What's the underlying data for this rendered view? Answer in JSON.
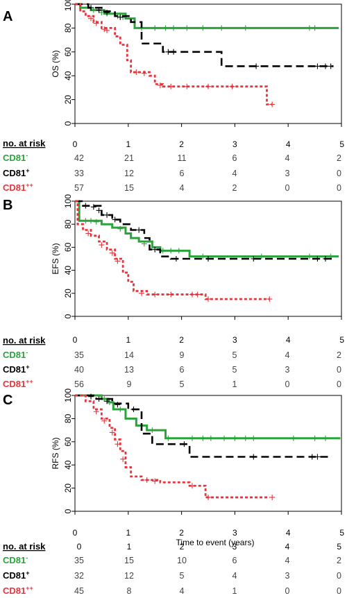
{
  "chart_data": [
    {
      "type": "line",
      "panel": "A",
      "ylabel": "OS (%)",
      "xlabel": "",
      "xlim": [
        0,
        5
      ],
      "ylim": [
        0,
        100
      ],
      "xticks": [
        "0",
        "1",
        "2",
        "3",
        "4",
        "5"
      ],
      "yticks": [
        "0",
        "20",
        "40",
        "60",
        "80",
        "100"
      ],
      "risk_table": {
        "header": "no. at risk",
        "times": [
          "0",
          "1",
          "2",
          "3",
          "4",
          "5"
        ],
        "rows": [
          {
            "label": "CD81",
            "sup": "-",
            "color": "#2aa33a",
            "values": [
              "42",
              "21",
              "11",
              "6",
              "4",
              "2"
            ]
          },
          {
            "label": "CD81",
            "sup": "+",
            "color": "#000000",
            "values": [
              "33",
              "12",
              "6",
              "4",
              "3",
              "0"
            ]
          },
          {
            "label": "CD81",
            "sup": "++",
            "color": "#e8333a",
            "values": [
              "57",
              "15",
              "4",
              "2",
              "0",
              "0"
            ]
          }
        ]
      },
      "series": [
        {
          "style": "solid",
          "color": "#2aa33a",
          "steps": [
            [
              0,
              100
            ],
            [
              0.1,
              97
            ],
            [
              0.3,
              95
            ],
            [
              0.55,
              92
            ],
            [
              0.95,
              88
            ],
            [
              1.12,
              80
            ],
            [
              4.95,
              80
            ]
          ],
          "censors": [
            [
              0.35,
              95
            ],
            [
              0.5,
              93
            ],
            [
              0.6,
              92
            ],
            [
              0.8,
              90
            ],
            [
              0.9,
              89
            ],
            [
              1.25,
              80
            ],
            [
              1.5,
              80
            ],
            [
              1.7,
              80
            ],
            [
              1.85,
              80
            ],
            [
              2.1,
              80
            ],
            [
              2.4,
              80
            ],
            [
              2.75,
              80
            ],
            [
              3.2,
              80
            ],
            [
              4.4,
              80
            ],
            [
              4.5,
              80
            ]
          ]
        },
        {
          "style": "dashed",
          "color": "#000000",
          "steps": [
            [
              0,
              100
            ],
            [
              0.25,
              97
            ],
            [
              0.5,
              94
            ],
            [
              0.75,
              90
            ],
            [
              1.05,
              85
            ],
            [
              1.25,
              67
            ],
            [
              1.65,
              60
            ],
            [
              2.75,
              48
            ],
            [
              4.85,
              48
            ]
          ],
          "censors": [
            [
              0.3,
              97
            ],
            [
              0.45,
              95
            ],
            [
              0.6,
              93
            ],
            [
              0.85,
              89
            ],
            [
              1.75,
              60
            ],
            [
              1.85,
              60
            ],
            [
              3.4,
              48
            ],
            [
              4.55,
              48
            ],
            [
              4.7,
              48
            ],
            [
              4.8,
              48
            ]
          ]
        },
        {
          "style": "dotted",
          "color": "#e8333a",
          "steps": [
            [
              0,
              100
            ],
            [
              0.1,
              94
            ],
            [
              0.2,
              90
            ],
            [
              0.35,
              85
            ],
            [
              0.5,
              80
            ],
            [
              0.75,
              73
            ],
            [
              0.85,
              66
            ],
            [
              0.98,
              53
            ],
            [
              1.05,
              43
            ],
            [
              1.4,
              40
            ],
            [
              1.5,
              33
            ],
            [
              1.65,
              31
            ],
            [
              3.5,
              31
            ],
            [
              3.6,
              16
            ],
            [
              3.7,
              16
            ]
          ],
          "censors": [
            [
              0.3,
              88
            ],
            [
              0.4,
              84
            ],
            [
              0.55,
              79
            ],
            [
              0.6,
              78
            ],
            [
              1.15,
              43
            ],
            [
              1.3,
              42
            ],
            [
              1.6,
              32
            ],
            [
              1.8,
              31
            ],
            [
              2.1,
              31
            ],
            [
              2.5,
              31
            ],
            [
              2.95,
              31
            ],
            [
              3.7,
              16
            ]
          ]
        }
      ]
    },
    {
      "type": "line",
      "panel": "B",
      "ylabel": "EFS (%)",
      "xlabel": "",
      "xlim": [
        0,
        5
      ],
      "ylim": [
        0,
        100
      ],
      "xticks": [
        "0",
        "1",
        "2",
        "3",
        "4",
        "5"
      ],
      "yticks": [
        "0",
        "20",
        "40",
        "60",
        "80",
        "100"
      ],
      "risk_table": {
        "header": "no. at risk",
        "times": [
          "0",
          "1",
          "2",
          "3",
          "4",
          "5"
        ],
        "rows": [
          {
            "label": "CD81",
            "sup": "-",
            "color": "#2aa33a",
            "values": [
              "35",
              "14",
              "9",
              "5",
              "4",
              "2"
            ]
          },
          {
            "label": "CD81",
            "sup": "+",
            "color": "#000000",
            "values": [
              "40",
              "13",
              "6",
              "5",
              "3",
              "0"
            ]
          },
          {
            "label": "CD81",
            "sup": "++",
            "color": "#e8333a",
            "values": [
              "56",
              "9",
              "5",
              "1",
              "0",
              "0"
            ]
          }
        ]
      },
      "series": [
        {
          "style": "solid",
          "color": "#2aa33a",
          "steps": [
            [
              0,
              100
            ],
            [
              0.08,
              83
            ],
            [
              0.5,
              80
            ],
            [
              0.7,
              77
            ],
            [
              0.95,
              72
            ],
            [
              1.05,
              68
            ],
            [
              1.2,
              65
            ],
            [
              1.45,
              60
            ],
            [
              1.6,
              57
            ],
            [
              2.15,
              52
            ],
            [
              4.95,
              52
            ]
          ],
          "censors": [
            [
              0.2,
              83
            ],
            [
              0.3,
              83
            ],
            [
              0.4,
              82
            ],
            [
              0.85,
              76
            ],
            [
              1.3,
              63
            ],
            [
              1.65,
              57
            ],
            [
              1.8,
              57
            ],
            [
              1.95,
              57
            ],
            [
              2.4,
              52
            ],
            [
              3.5,
              52
            ],
            [
              4.4,
              52
            ],
            [
              4.8,
              52
            ]
          ]
        },
        {
          "style": "dashed",
          "color": "#000000",
          "steps": [
            [
              0,
              100
            ],
            [
              0.15,
              96
            ],
            [
              0.5,
              88
            ],
            [
              0.7,
              84
            ],
            [
              0.85,
              80
            ],
            [
              1.05,
              75
            ],
            [
              1.3,
              68
            ],
            [
              1.4,
              58
            ],
            [
              1.6,
              52
            ],
            [
              1.8,
              50
            ],
            [
              4.85,
              50
            ]
          ],
          "censors": [
            [
              0.2,
              96
            ],
            [
              0.35,
              95
            ],
            [
              0.45,
              92
            ],
            [
              0.6,
              88
            ],
            [
              0.75,
              84
            ],
            [
              1.2,
              75
            ],
            [
              1.5,
              58
            ],
            [
              1.9,
              50
            ],
            [
              2.5,
              50
            ],
            [
              3.35,
              50
            ],
            [
              4.55,
              50
            ],
            [
              4.7,
              50
            ]
          ]
        },
        {
          "style": "dotted",
          "color": "#e8333a",
          "steps": [
            [
              0,
              100
            ],
            [
              0.05,
              80
            ],
            [
              0.15,
              75
            ],
            [
              0.3,
              70
            ],
            [
              0.45,
              65
            ],
            [
              0.6,
              58
            ],
            [
              0.75,
              50
            ],
            [
              0.9,
              38
            ],
            [
              1.0,
              30
            ],
            [
              1.1,
              22
            ],
            [
              1.35,
              19
            ],
            [
              2.45,
              15
            ],
            [
              3.65,
              15
            ]
          ],
          "censors": [
            [
              0.25,
              72
            ],
            [
              0.5,
              62
            ],
            [
              0.7,
              55
            ],
            [
              0.8,
              48
            ],
            [
              1.25,
              20
            ],
            [
              1.5,
              19
            ],
            [
              1.8,
              19
            ],
            [
              2.2,
              19
            ],
            [
              2.3,
              19
            ],
            [
              2.5,
              15
            ],
            [
              3.65,
              15
            ]
          ]
        }
      ]
    },
    {
      "type": "line",
      "panel": "C",
      "ylabel": "RFS (%)",
      "xlabel": "Time to event (years)",
      "xlim": [
        0,
        5
      ],
      "ylim": [
        0,
        100
      ],
      "xticks": [
        "0",
        "1",
        "2",
        "3",
        "4",
        "5"
      ],
      "yticks": [
        "0",
        "20",
        "40",
        "60",
        "80",
        "100"
      ],
      "risk_table": {
        "header": "no. at risk",
        "times": [
          "0",
          "1",
          "2",
          "3",
          "4",
          "5"
        ],
        "rows": [
          {
            "label": "CD81",
            "sup": "-",
            "color": "#2aa33a",
            "values": [
              "35",
              "15",
              "10",
              "6",
              "4",
              "2"
            ]
          },
          {
            "label": "CD81",
            "sup": "+",
            "color": "#000000",
            "values": [
              "32",
              "12",
              "5",
              "4",
              "3",
              "0"
            ]
          },
          {
            "label": "CD81",
            "sup": "++",
            "color": "#e8333a",
            "values": [
              "45",
              "8",
              "4",
              "1",
              "0",
              "0"
            ]
          }
        ]
      },
      "series": [
        {
          "style": "solid",
          "color": "#2aa33a",
          "steps": [
            [
              0,
              100
            ],
            [
              0.5,
              97
            ],
            [
              0.62,
              94
            ],
            [
              0.72,
              88
            ],
            [
              0.95,
              80
            ],
            [
              1.15,
              74
            ],
            [
              1.35,
              70
            ],
            [
              1.7,
              63
            ],
            [
              4.98,
              63
            ]
          ],
          "censors": [
            [
              0.55,
              97
            ],
            [
              0.65,
              94
            ],
            [
              0.85,
              88
            ],
            [
              1.45,
              70
            ],
            [
              1.75,
              63
            ],
            [
              2.2,
              63
            ],
            [
              2.4,
              63
            ],
            [
              2.55,
              63
            ],
            [
              2.8,
              63
            ],
            [
              3.0,
              63
            ],
            [
              3.2,
              63
            ],
            [
              3.35,
              63
            ],
            [
              4.1,
              63
            ],
            [
              4.5,
              63
            ],
            [
              4.7,
              63
            ]
          ]
        },
        {
          "style": "dashed",
          "color": "#000000",
          "steps": [
            [
              0,
              100
            ],
            [
              0.4,
              97
            ],
            [
              0.7,
              93
            ],
            [
              1.0,
              88
            ],
            [
              1.25,
              67
            ],
            [
              1.45,
              58
            ],
            [
              2.15,
              47
            ],
            [
              4.8,
              47
            ]
          ],
          "censors": [
            [
              0.3,
              99
            ],
            [
              0.45,
              97
            ],
            [
              0.6,
              95
            ],
            [
              0.8,
              92
            ],
            [
              1.1,
              88
            ],
            [
              2.05,
              58
            ],
            [
              3.35,
              47
            ],
            [
              4.45,
              47
            ],
            [
              4.55,
              47
            ]
          ]
        },
        {
          "style": "dotted",
          "color": "#e8333a",
          "steps": [
            [
              0,
              100
            ],
            [
              0.2,
              95
            ],
            [
              0.35,
              88
            ],
            [
              0.5,
              80
            ],
            [
              0.65,
              72
            ],
            [
              0.75,
              62
            ],
            [
              0.85,
              52
            ],
            [
              0.95,
              38
            ],
            [
              1.05,
              30
            ],
            [
              1.25,
              27
            ],
            [
              1.6,
              25
            ],
            [
              2.15,
              22
            ],
            [
              2.45,
              12
            ],
            [
              3.65,
              12
            ]
          ],
          "censors": [
            [
              0.4,
              86
            ],
            [
              0.55,
              78
            ],
            [
              0.7,
              68
            ],
            [
              0.8,
              58
            ],
            [
              0.9,
              45
            ],
            [
              1.35,
              27
            ],
            [
              1.5,
              26
            ],
            [
              2.2,
              22
            ],
            [
              2.5,
              12
            ],
            [
              3.7,
              12
            ]
          ]
        }
      ]
    }
  ]
}
